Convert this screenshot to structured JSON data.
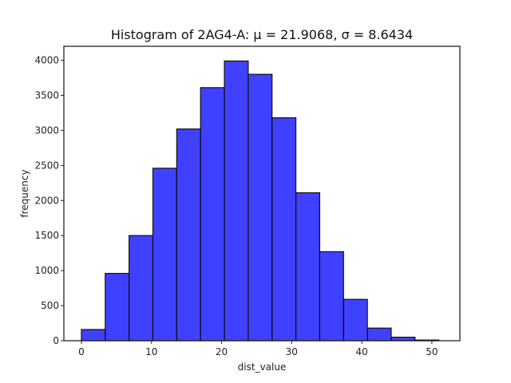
{
  "chart_data": {
    "type": "bar",
    "title": "Histogram of 2AG4-A: μ = 21.9068, σ = 8.6434",
    "xlabel": "dist_value",
    "ylabel": "frequency",
    "xlim": [
      -2.5,
      54
    ],
    "ylim": [
      0,
      4200
    ],
    "x_ticks": [
      0,
      10,
      20,
      30,
      40,
      50
    ],
    "y_ticks": [
      0,
      500,
      1000,
      1500,
      2000,
      2500,
      3000,
      3500,
      4000
    ],
    "bin_edges": [
      0,
      3.4,
      6.8,
      10.2,
      13.6,
      17.0,
      20.4,
      23.8,
      27.2,
      30.6,
      34.0,
      37.4,
      40.8,
      44.2,
      47.6,
      51.0
    ],
    "values": [
      160,
      960,
      1500,
      2460,
      3020,
      3610,
      3990,
      3800,
      3180,
      2110,
      1270,
      590,
      180,
      50,
      10
    ],
    "bar_color": "#0000ff",
    "bar_edge_color": "#111111",
    "grid": false
  }
}
